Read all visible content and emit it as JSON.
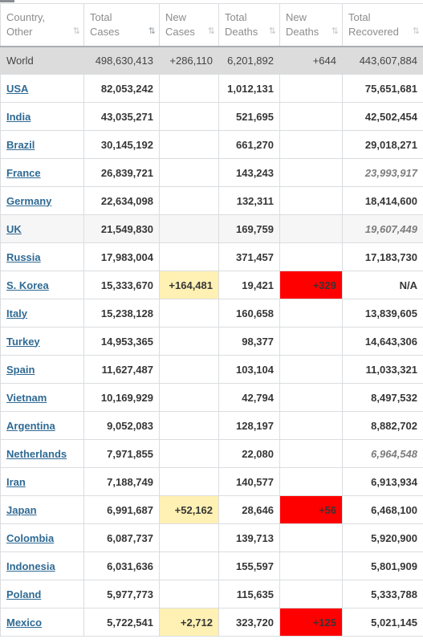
{
  "columns": [
    {
      "line1": "Country,",
      "line2": "Other",
      "sort": "unsorted"
    },
    {
      "line1": "Total",
      "line2": "Cases",
      "sort": "sorted-desc"
    },
    {
      "line1": "New",
      "line2": "Cases",
      "sort": "unsorted"
    },
    {
      "line1": "Total",
      "line2": "Deaths",
      "sort": "unsorted"
    },
    {
      "line1": "New",
      "line2": "Deaths",
      "sort": "unsorted"
    },
    {
      "line1": "Total",
      "line2": "Recovered",
      "sort": "unsorted"
    }
  ],
  "world": {
    "name": "World",
    "total_cases": "498,630,413",
    "new_cases": "+286,110",
    "total_deaths": "6,201,892",
    "new_deaths": "+644",
    "total_recovered": "443,607,884"
  },
  "colors": {
    "new_cases_highlight": "#fff1b3",
    "new_deaths_highlight": "#ff0000",
    "link": "#2f6a94",
    "world_row": "#dcdcdc"
  },
  "rows": [
    {
      "country": "USA",
      "total_cases": "82,053,242",
      "new_cases": "",
      "total_deaths": "1,012,131",
      "new_deaths": "",
      "total_recovered": "75,651,681"
    },
    {
      "country": "India",
      "total_cases": "43,035,271",
      "new_cases": "",
      "total_deaths": "521,695",
      "new_deaths": "",
      "total_recovered": "42,502,454"
    },
    {
      "country": "Brazil",
      "total_cases": "30,145,192",
      "new_cases": "",
      "total_deaths": "661,270",
      "new_deaths": "",
      "total_recovered": "29,018,271"
    },
    {
      "country": "France",
      "total_cases": "26,839,721",
      "new_cases": "",
      "total_deaths": "143,243",
      "new_deaths": "",
      "total_recovered": "23,993,917"
    },
    {
      "country": "Germany",
      "total_cases": "22,634,098",
      "new_cases": "",
      "total_deaths": "132,311",
      "new_deaths": "",
      "total_recovered": "18,414,600"
    },
    {
      "country": "UK",
      "total_cases": "21,549,830",
      "new_cases": "",
      "total_deaths": "169,759",
      "new_deaths": "",
      "total_recovered": "19,607,449"
    },
    {
      "country": "Russia",
      "total_cases": "17,983,004",
      "new_cases": "",
      "total_deaths": "371,457",
      "new_deaths": "",
      "total_recovered": "17,183,730"
    },
    {
      "country": "S. Korea",
      "total_cases": "15,333,670",
      "new_cases": "+164,481",
      "total_deaths": "19,421",
      "new_deaths": "+329",
      "total_recovered": "N/A"
    },
    {
      "country": "Italy",
      "total_cases": "15,238,128",
      "new_cases": "",
      "total_deaths": "160,658",
      "new_deaths": "",
      "total_recovered": "13,839,605"
    },
    {
      "country": "Turkey",
      "total_cases": "14,953,365",
      "new_cases": "",
      "total_deaths": "98,377",
      "new_deaths": "",
      "total_recovered": "14,643,306"
    },
    {
      "country": "Spain",
      "total_cases": "11,627,487",
      "new_cases": "",
      "total_deaths": "103,104",
      "new_deaths": "",
      "total_recovered": "11,033,321"
    },
    {
      "country": "Vietnam",
      "total_cases": "10,169,929",
      "new_cases": "",
      "total_deaths": "42,794",
      "new_deaths": "",
      "total_recovered": "8,497,532"
    },
    {
      "country": "Argentina",
      "total_cases": "9,052,083",
      "new_cases": "",
      "total_deaths": "128,197",
      "new_deaths": "",
      "total_recovered": "8,882,702"
    },
    {
      "country": "Netherlands",
      "total_cases": "7,971,855",
      "new_cases": "",
      "total_deaths": "22,080",
      "new_deaths": "",
      "total_recovered": "6,964,548"
    },
    {
      "country": "Iran",
      "total_cases": "7,188,749",
      "new_cases": "",
      "total_deaths": "140,577",
      "new_deaths": "",
      "total_recovered": "6,913,934"
    },
    {
      "country": "Japan",
      "total_cases": "6,991,687",
      "new_cases": "+52,162",
      "total_deaths": "28,646",
      "new_deaths": "+56",
      "total_recovered": "6,468,100"
    },
    {
      "country": "Colombia",
      "total_cases": "6,087,737",
      "new_cases": "",
      "total_deaths": "139,713",
      "new_deaths": "",
      "total_recovered": "5,920,900"
    },
    {
      "country": "Indonesia",
      "total_cases": "6,031,636",
      "new_cases": "",
      "total_deaths": "155,597",
      "new_deaths": "",
      "total_recovered": "5,801,909"
    },
    {
      "country": "Poland",
      "total_cases": "5,977,773",
      "new_cases": "",
      "total_deaths": "115,635",
      "new_deaths": "",
      "total_recovered": "5,333,788"
    },
    {
      "country": "Mexico",
      "total_cases": "5,722,541",
      "new_cases": "+2,712",
      "total_deaths": "323,720",
      "new_deaths": "+125",
      "total_recovered": "5,021,145"
    }
  ]
}
